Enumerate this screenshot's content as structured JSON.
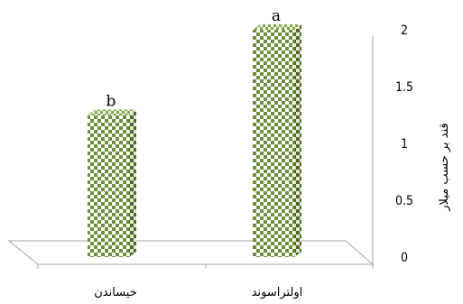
{
  "chart_data": {
    "type": "bar",
    "categories": [
      "خیساندن",
      "اولتراسوند"
    ],
    "values": [
      1.25,
      2.0
    ],
    "letters": [
      "b",
      "a"
    ],
    "ylabel": "قند بر حسب میلار",
    "ylim": [
      0,
      2
    ],
    "yticks": [
      "0",
      "0.5",
      "1",
      "1.5",
      "2"
    ],
    "bar_color": "#6e8f3a",
    "grid": false,
    "legend": "none"
  }
}
